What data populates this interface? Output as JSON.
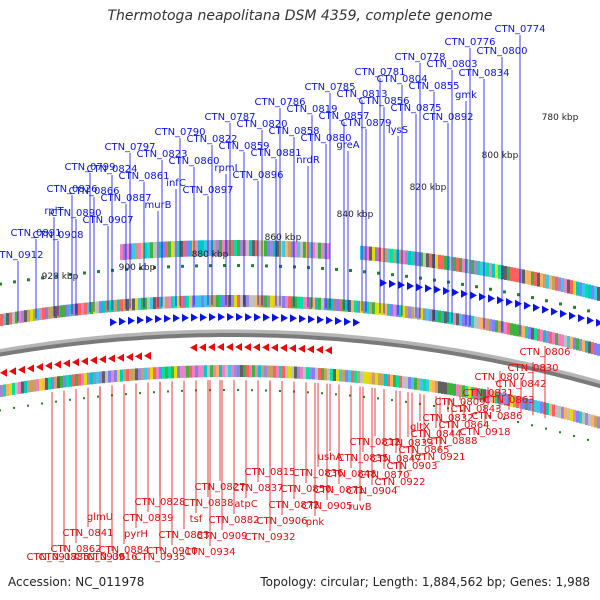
{
  "title": "Thermotoga neapolitana DSM 4359, complete genome",
  "footer": {
    "accession": "Accession: NC_011978",
    "summary": "Topology: circular; Length: 1,884,562 bp; Genes: 1,988"
  },
  "colors": {
    "forward": "#0a14e6",
    "reverse": "#e60a0a",
    "backbone": "#7a7a7a",
    "tick": "#1a8a1a"
  },
  "scale_labels": [
    "780 kbp",
    "800 kbp",
    "820 kbp",
    "840 kbp",
    "860 kbp",
    "880 kbp",
    "900 kbp",
    "920 kbp"
  ],
  "forward_labels": [
    "CTN_0774",
    "CTN_0776",
    "CTN_0778",
    "CTN_0781",
    "CTN_0785",
    "CTN_0786",
    "CTN_0787",
    "CTN_0790",
    "CTN_0797",
    "CTN_0799",
    "CTN_0800",
    "CTN_0803",
    "CTN_0804",
    "CTN_0813",
    "CTN_0819",
    "CTN_0820",
    "CTN_0822",
    "CTN_0823",
    "CTN_0824",
    "CTN_0826",
    "CTN_0834",
    "CTN_0855",
    "CTN_0856",
    "CTN_0857",
    "CTN_0858",
    "CTN_0859",
    "CTN_0860",
    "CTN_0861",
    "CTN_0866",
    "rplT",
    "gmk",
    "CTN_0875",
    "CTN_0879",
    "CTN_0880",
    "CTN_0881",
    "rpmI",
    "infC",
    "CTN_0887",
    "CTN_0890",
    "CTN_0891",
    "CTN_0892",
    "lysS",
    "greA",
    "nrdR",
    "CTN_0896",
    "CTN_0897",
    "murB",
    "CTN_0907",
    "CTN_0908",
    "CTN_0912"
  ],
  "reverse_labels": [
    "CTN_0806",
    "CTN_0807",
    "CTN_0809",
    "gltX",
    "CTN_0812",
    "ushA",
    "CTN_0815",
    "CTN_0827",
    "CTN_0828",
    "glmU",
    "CTN_0830",
    "CTN_0831",
    "CTN_0832",
    "CTN_0833",
    "CTN_0835",
    "CTN_0836",
    "CTN_0837",
    "CTN_0838",
    "CTN_0839",
    "CTN_0841",
    "CTN_0842",
    "CTN_0843",
    "CTN_0844",
    "CTN_0847",
    "CTN_0848",
    "CTN_0850",
    "atpC",
    "tsf",
    "pyrH",
    "CTN_0862",
    "CTN_0863",
    "CTN_0864",
    "CTN_0865",
    "CTN_0870",
    "CTN_0871",
    "CTN_0872",
    "CTN_0882",
    "CTN_0883",
    "CTN_0884",
    "CTN_0885",
    "CTN_0886",
    "CTN_0888",
    "CTN_0903",
    "CTN_0904",
    "CTN_0905",
    "CTN_0906",
    "CTN_0909",
    "CTN_0910",
    "CTN_0916",
    "CTN_0917",
    "CTN_0918",
    "CTN_0921",
    "CTN_0922",
    "ruvB",
    "pnk",
    "CTN_0932",
    "CTN_0934",
    "CTN_0935",
    "CTN_0936"
  ]
}
